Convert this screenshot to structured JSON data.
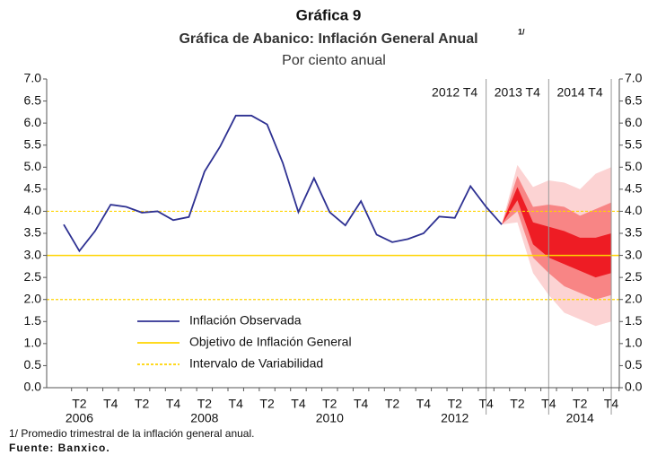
{
  "chart_data": {
    "type": "fan",
    "heading": "Gráfica 9",
    "title": "Gráfica de Abanico: Inflación General Anual",
    "title_note": "1/",
    "subtitle": "Por ciento anual",
    "footnote": "1/ Promedio trimestral de la inflación general anual.",
    "source": "Fuente: Banxico.",
    "categories": [
      null,
      "T2",
      null,
      "T4",
      null,
      "T2",
      null,
      "T4",
      null,
      "T2",
      null,
      "T4",
      null,
      "T2",
      null,
      "T4",
      null,
      "T2",
      null,
      "T4",
      null,
      "T2",
      null,
      "T4",
      null,
      "T2",
      null,
      "T4",
      null,
      "T2",
      null,
      "T4",
      null,
      "T2",
      null,
      "T4"
    ],
    "years": [
      null,
      "2006",
      null,
      null,
      null,
      null,
      null,
      null,
      null,
      "2008",
      null,
      null,
      null,
      null,
      null,
      null,
      null,
      "2010",
      null,
      null,
      null,
      null,
      null,
      null,
      null,
      "2012",
      null,
      null,
      null,
      null,
      null,
      null,
      null,
      "2014",
      null,
      null
    ],
    "series": [
      {
        "name": "Inflación Observada",
        "color": "#2e3192",
        "values": [
          3.7,
          3.1,
          3.55,
          4.15,
          4.1,
          3.97,
          4.0,
          3.8,
          3.87,
          4.9,
          5.47,
          6.17,
          6.17,
          5.97,
          5.1,
          3.98,
          4.75,
          3.98,
          3.68,
          4.23,
          3.47,
          3.3,
          3.37,
          3.5,
          3.88,
          3.85,
          4.57,
          4.1,
          3.7,
          null,
          null,
          null,
          null,
          null,
          null,
          null
        ]
      }
    ],
    "target": {
      "name": "Objetivo de Inflación General",
      "value": 3.0,
      "color": "#ffd400"
    },
    "interval": {
      "name": "Intervalo de Variabilidad",
      "values": [
        2.0,
        4.0
      ],
      "color": "#ffd400"
    },
    "fan": {
      "colors": [
        "#fcd3d3",
        "#f88585",
        "#ee1c24"
      ],
      "bands": [
        {
          "lower": [
            null,
            null,
            null,
            null,
            null,
            null,
            null,
            null,
            null,
            null,
            null,
            null,
            null,
            null,
            null,
            null,
            null,
            null,
            null,
            null,
            null,
            null,
            null,
            null,
            null,
            null,
            null,
            null,
            3.7,
            3.75,
            2.6,
            2.1,
            1.7,
            1.55,
            1.4,
            1.5
          ],
          "upper": [
            null,
            null,
            null,
            null,
            null,
            null,
            null,
            null,
            null,
            null,
            null,
            null,
            null,
            null,
            null,
            null,
            null,
            null,
            null,
            null,
            null,
            null,
            null,
            null,
            null,
            null,
            null,
            null,
            3.7,
            5.05,
            4.55,
            4.7,
            4.65,
            4.5,
            4.85,
            5.0
          ]
        },
        {
          "lower": [
            null,
            null,
            null,
            null,
            null,
            null,
            null,
            null,
            null,
            null,
            null,
            null,
            null,
            null,
            null,
            null,
            null,
            null,
            null,
            null,
            null,
            null,
            null,
            null,
            null,
            null,
            null,
            null,
            3.7,
            4.0,
            2.95,
            2.6,
            2.3,
            2.15,
            2.0,
            2.1
          ],
          "upper": [
            null,
            null,
            null,
            null,
            null,
            null,
            null,
            null,
            null,
            null,
            null,
            null,
            null,
            null,
            null,
            null,
            null,
            null,
            null,
            null,
            null,
            null,
            null,
            null,
            null,
            null,
            null,
            null,
            3.7,
            4.8,
            4.1,
            4.15,
            4.1,
            3.9,
            4.05,
            4.2
          ]
        },
        {
          "lower": [
            null,
            null,
            null,
            null,
            null,
            null,
            null,
            null,
            null,
            null,
            null,
            null,
            null,
            null,
            null,
            null,
            null,
            null,
            null,
            null,
            null,
            null,
            null,
            null,
            null,
            null,
            null,
            null,
            3.7,
            4.25,
            3.25,
            2.95,
            2.8,
            2.65,
            2.5,
            2.6
          ],
          "upper": [
            null,
            null,
            null,
            null,
            null,
            null,
            null,
            null,
            null,
            null,
            null,
            null,
            null,
            null,
            null,
            null,
            null,
            null,
            null,
            null,
            null,
            null,
            null,
            null,
            null,
            null,
            null,
            null,
            3.7,
            4.55,
            3.75,
            3.65,
            3.55,
            3.4,
            3.4,
            3.5
          ]
        }
      ]
    },
    "vlines": [
      {
        "label": "2012 T4",
        "at": 27
      },
      {
        "label": "2013 T4",
        "at": 31
      },
      {
        "label": "2014 T4",
        "at": 35
      }
    ],
    "ylim": [
      0,
      7
    ],
    "yticks": [
      {
        "value": 0,
        "label": "0.0"
      },
      {
        "value": 0.5,
        "label": "0.5"
      },
      {
        "value": 1,
        "label": "1.0"
      },
      {
        "value": 1.5,
        "label": "1.5"
      },
      {
        "value": 2,
        "label": "2.0"
      },
      {
        "value": 2.5,
        "label": "2.5"
      },
      {
        "value": 3,
        "label": "3.0"
      },
      {
        "value": 3.5,
        "label": "3.5"
      },
      {
        "value": 4,
        "label": "4.0"
      },
      {
        "value": 4.5,
        "label": "4.5"
      },
      {
        "value": 5,
        "label": "5.0"
      },
      {
        "value": 5.5,
        "label": "5.5"
      },
      {
        "value": 6,
        "label": "6.0"
      },
      {
        "value": 6.5,
        "label": "6.5"
      },
      {
        "value": 7,
        "label": "7.0"
      }
    ]
  }
}
